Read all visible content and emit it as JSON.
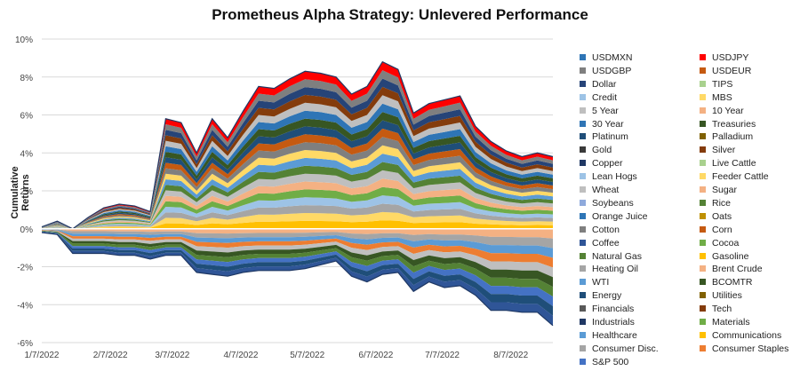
{
  "chart_data": {
    "type": "area",
    "title": "Prometheus Alpha Strategy: Unlevered Performance",
    "xlabel": "",
    "ylabel": "Cumulative Returns",
    "x_ticks": [
      "1/7/2022",
      "2/7/2022",
      "3/7/2022",
      "4/7/2022",
      "5/7/2022",
      "6/7/2022",
      "7/7/2022",
      "8/7/2022"
    ],
    "y_ticks": [
      "-6%",
      "-4%",
      "-2%",
      "0%",
      "2%",
      "4%",
      "6%",
      "8%",
      "10%"
    ],
    "ylim": [
      -6,
      10
    ],
    "grid": true,
    "legend_position": "right",
    "total_top": [
      {
        "x": "2022-01-07",
        "y": 0.1
      },
      {
        "x": "2022-01-14",
        "y": 0.4
      },
      {
        "x": "2022-01-21",
        "y": 0.0
      },
      {
        "x": "2022-01-28",
        "y": 0.6
      },
      {
        "x": "2022-02-04",
        "y": 1.1
      },
      {
        "x": "2022-02-11",
        "y": 1.3
      },
      {
        "x": "2022-02-18",
        "y": 1.2
      },
      {
        "x": "2022-02-25",
        "y": 0.9
      },
      {
        "x": "2022-03-04",
        "y": 5.8
      },
      {
        "x": "2022-03-11",
        "y": 5.6
      },
      {
        "x": "2022-03-18",
        "y": 4.0
      },
      {
        "x": "2022-03-25",
        "y": 5.8
      },
      {
        "x": "2022-04-01",
        "y": 4.8
      },
      {
        "x": "2022-04-08",
        "y": 6.2
      },
      {
        "x": "2022-04-15",
        "y": 7.5
      },
      {
        "x": "2022-04-22",
        "y": 7.4
      },
      {
        "x": "2022-04-29",
        "y": 7.9
      },
      {
        "x": "2022-05-06",
        "y": 8.3
      },
      {
        "x": "2022-05-13",
        "y": 8.2
      },
      {
        "x": "2022-05-20",
        "y": 8.0
      },
      {
        "x": "2022-05-27",
        "y": 7.1
      },
      {
        "x": "2022-06-03",
        "y": 7.5
      },
      {
        "x": "2022-06-10",
        "y": 8.8
      },
      {
        "x": "2022-06-17",
        "y": 8.4
      },
      {
        "x": "2022-06-24",
        "y": 6.1
      },
      {
        "x": "2022-07-01",
        "y": 6.6
      },
      {
        "x": "2022-07-08",
        "y": 6.8
      },
      {
        "x": "2022-07-15",
        "y": 7.0
      },
      {
        "x": "2022-07-22",
        "y": 5.4
      },
      {
        "x": "2022-07-29",
        "y": 4.6
      },
      {
        "x": "2022-08-05",
        "y": 4.1
      },
      {
        "x": "2022-08-12",
        "y": 3.8
      },
      {
        "x": "2022-08-19",
        "y": 4.0
      },
      {
        "x": "2022-08-26",
        "y": 3.8
      }
    ],
    "total_bottom": [
      {
        "x": "2022-01-07",
        "y": -0.2
      },
      {
        "x": "2022-01-14",
        "y": -0.3
      },
      {
        "x": "2022-01-21",
        "y": -1.3
      },
      {
        "x": "2022-01-28",
        "y": -1.3
      },
      {
        "x": "2022-02-04",
        "y": -1.3
      },
      {
        "x": "2022-02-11",
        "y": -1.4
      },
      {
        "x": "2022-02-18",
        "y": -1.4
      },
      {
        "x": "2022-02-25",
        "y": -1.6
      },
      {
        "x": "2022-03-04",
        "y": -1.4
      },
      {
        "x": "2022-03-11",
        "y": -1.4
      },
      {
        "x": "2022-03-18",
        "y": -2.3
      },
      {
        "x": "2022-03-25",
        "y": -2.4
      },
      {
        "x": "2022-04-01",
        "y": -2.5
      },
      {
        "x": "2022-04-08",
        "y": -2.3
      },
      {
        "x": "2022-04-15",
        "y": -2.2
      },
      {
        "x": "2022-04-22",
        "y": -2.2
      },
      {
        "x": "2022-04-29",
        "y": -2.2
      },
      {
        "x": "2022-05-06",
        "y": -2.1
      },
      {
        "x": "2022-05-13",
        "y": -1.9
      },
      {
        "x": "2022-05-20",
        "y": -1.7
      },
      {
        "x": "2022-05-27",
        "y": -2.5
      },
      {
        "x": "2022-06-03",
        "y": -2.8
      },
      {
        "x": "2022-06-10",
        "y": -2.4
      },
      {
        "x": "2022-06-17",
        "y": -2.3
      },
      {
        "x": "2022-06-24",
        "y": -3.3
      },
      {
        "x": "2022-07-01",
        "y": -2.8
      },
      {
        "x": "2022-07-08",
        "y": -3.1
      },
      {
        "x": "2022-07-15",
        "y": -3.0
      },
      {
        "x": "2022-07-22",
        "y": -3.5
      },
      {
        "x": "2022-07-29",
        "y": -4.3
      },
      {
        "x": "2022-08-05",
        "y": -4.3
      },
      {
        "x": "2022-08-12",
        "y": -4.4
      },
      {
        "x": "2022-08-19",
        "y": -4.4
      },
      {
        "x": "2022-08-26",
        "y": -5.1
      }
    ],
    "series": [
      {
        "name": "USDMXN",
        "color": "#2e75b6"
      },
      {
        "name": "USDJPY",
        "color": "#ff0000"
      },
      {
        "name": "USDGBP",
        "color": "#7f7f7f"
      },
      {
        "name": "USDEUR",
        "color": "#c55a11"
      },
      {
        "name": "Dollar",
        "color": "#264478"
      },
      {
        "name": "TIPS",
        "color": "#a9d18e"
      },
      {
        "name": "Credit",
        "color": "#9dc3e6"
      },
      {
        "name": "MBS",
        "color": "#ffd966"
      },
      {
        "name": "5 Year",
        "color": "#bfbfbf"
      },
      {
        "name": "10 Year",
        "color": "#f4b183"
      },
      {
        "name": "30 Year",
        "color": "#2f75b5"
      },
      {
        "name": "Treasuries",
        "color": "#375623"
      },
      {
        "name": "Platinum",
        "color": "#1f4e79"
      },
      {
        "name": "Palladium",
        "color": "#7f6000"
      },
      {
        "name": "Gold",
        "color": "#3a3a3a"
      },
      {
        "name": "Silver",
        "color": "#843c0c"
      },
      {
        "name": "Copper",
        "color": "#203864"
      },
      {
        "name": "Live Cattle",
        "color": "#a9d18e"
      },
      {
        "name": "Lean Hogs",
        "color": "#9dc3e6"
      },
      {
        "name": "Feeder Cattle",
        "color": "#ffd966"
      },
      {
        "name": "Wheat",
        "color": "#bfbfbf"
      },
      {
        "name": "Sugar",
        "color": "#f4b183"
      },
      {
        "name": "Soybeans",
        "color": "#8faadc"
      },
      {
        "name": "Rice",
        "color": "#548235"
      },
      {
        "name": "Orange Juice",
        "color": "#2e75b6"
      },
      {
        "name": "Oats",
        "color": "#bf9000"
      },
      {
        "name": "Cotton",
        "color": "#7f7f7f"
      },
      {
        "name": "Corn",
        "color": "#c55a11"
      },
      {
        "name": "Coffee",
        "color": "#2f5597"
      },
      {
        "name": "Cocoa",
        "color": "#70ad47"
      },
      {
        "name": "Natural Gas",
        "color": "#548235"
      },
      {
        "name": "Gasoline",
        "color": "#ffc000"
      },
      {
        "name": "Heating Oil",
        "color": "#a5a5a5"
      },
      {
        "name": "Brent Crude",
        "color": "#f4b183"
      },
      {
        "name": "WTI",
        "color": "#5b9bd5"
      },
      {
        "name": "BCOMTR",
        "color": "#375623"
      },
      {
        "name": "Energy",
        "color": "#1f4e79"
      },
      {
        "name": "Utilities",
        "color": "#806000"
      },
      {
        "name": "Financials",
        "color": "#595959"
      },
      {
        "name": "Tech",
        "color": "#843c0c"
      },
      {
        "name": "Industrials",
        "color": "#203864"
      },
      {
        "name": "Materials",
        "color": "#70ad47"
      },
      {
        "name": "Healthcare",
        "color": "#5b9bd5"
      },
      {
        "name": "Communications",
        "color": "#ffc000"
      },
      {
        "name": "Consumer Disc.",
        "color": "#a5a5a5"
      },
      {
        "name": "Consumer Staples",
        "color": "#ed7d31"
      },
      {
        "name": "S&P 500",
        "color": "#4472c4"
      }
    ]
  }
}
